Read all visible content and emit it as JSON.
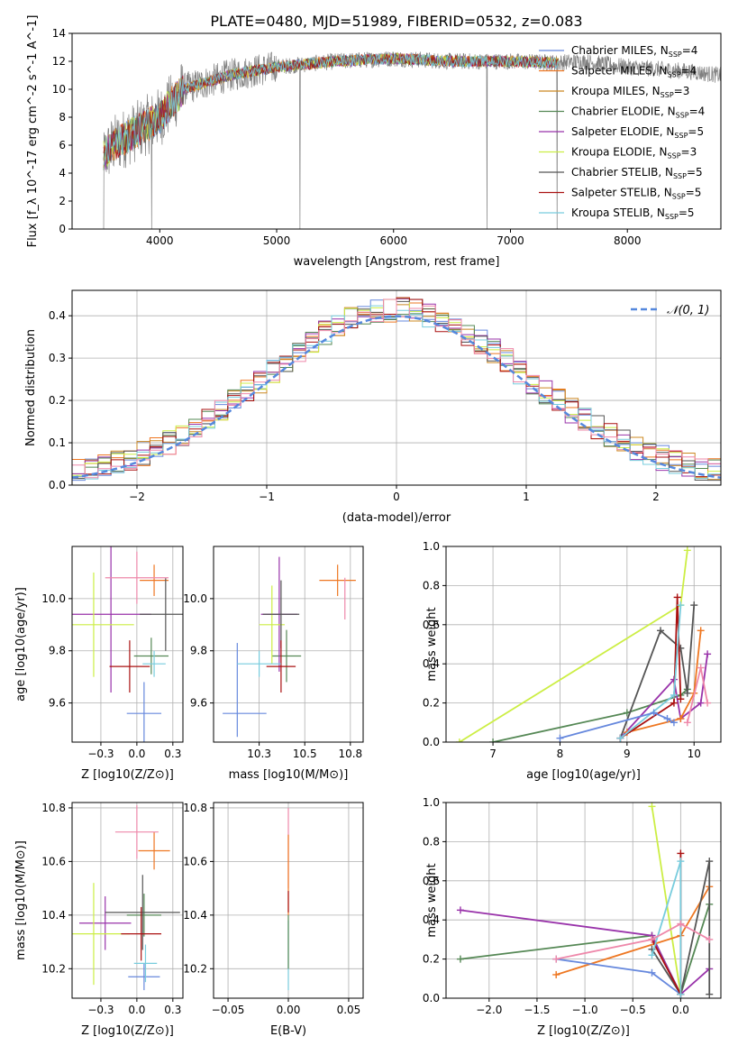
{
  "figure": {
    "title": "PLATE=0480, MJD=51989, FIBERID=0532, z=0.083"
  },
  "series": [
    {
      "key": "cm",
      "name": "Chabrier MILES, N",
      "sub": "SSP",
      "count": "=4",
      "color": "#6688dd"
    },
    {
      "key": "sm",
      "name": "Salpeter MILES, N",
      "sub": "SSP",
      "count": "=4",
      "color": "#ee7722"
    },
    {
      "key": "km",
      "name": "Kroupa MILES, N",
      "sub": "SSP",
      "count": "=3",
      "color": "#cc8822"
    },
    {
      "key": "ce",
      "name": "Chabrier ELODIE, N",
      "sub": "SSP",
      "count": "=4",
      "color": "#558855"
    },
    {
      "key": "se",
      "name": "Salpeter ELODIE, N",
      "sub": "SSP",
      "count": "=5",
      "color": "#9933aa"
    },
    {
      "key": "ke",
      "name": "Kroupa ELODIE, N",
      "sub": "SSP",
      "count": "=3",
      "color": "#ccee44"
    },
    {
      "key": "cs",
      "name": "Chabrier STELIB, N",
      "sub": "SSP",
      "count": "=5",
      "color": "#555555"
    },
    {
      "key": "ss",
      "name": "Salpeter STELIB, N",
      "sub": "SSP",
      "count": "=5",
      "color": "#aa1111"
    },
    {
      "key": "ks",
      "name": "Kroupa STELIB, N",
      "sub": "SSP",
      "count": "=5",
      "color": "#77ccdd"
    }
  ],
  "chart_data": [
    {
      "id": "spectrum",
      "type": "line",
      "xlabel": "wavelength [Angstrom, rest frame]",
      "ylabel": "Flux [f_λ 10^-17 erg cm^-2 s^-1 A^-1]",
      "xlim": [
        3250,
        8800
      ],
      "ylim": [
        0,
        14
      ],
      "xticks": [
        4000,
        5000,
        6000,
        7000,
        8000
      ],
      "yticks": [
        0,
        2,
        4,
        6,
        8,
        10,
        12,
        14
      ],
      "data_color": "#808080",
      "continuum": {
        "x": [
          3500,
          3600,
          3800,
          4000,
          4200,
          4600,
          5000,
          5500,
          6000,
          6500,
          7000,
          7400,
          7600,
          8000,
          8500,
          8800
        ],
        "y": [
          5.0,
          6.0,
          7.0,
          8.0,
          10.0,
          11.0,
          11.6,
          12.0,
          12.2,
          12.0,
          12.0,
          11.9,
          12.0,
          11.6,
          11.3,
          11.0
        ]
      },
      "dips": [
        [
          3930,
          0.0
        ],
        [
          5200,
          0.0
        ],
        [
          6800,
          0.0
        ],
        [
          7400,
          0.0
        ]
      ]
    },
    {
      "id": "residuals",
      "type": "histogram",
      "xlabel": "(data-model)/error",
      "ylabel": "Normed distribution",
      "xlim": [
        -2.5,
        2.5
      ],
      "ylim": [
        0,
        0.46
      ],
      "xticks": [
        -2,
        -1,
        0,
        1,
        2
      ],
      "yticks": [
        0.0,
        0.1,
        0.2,
        0.3,
        0.4
      ],
      "reference": {
        "label": "𝒩(0, 1)",
        "mean": 0,
        "sigma": 1,
        "color": "#5588dd"
      }
    },
    {
      "id": "age_Z",
      "type": "errorbar",
      "xlabel": "Z [log10(Z/Z⊙)]",
      "ylabel": "age [log10(age/yr)]",
      "xlim": [
        -0.45,
        0.32
      ],
      "ylim": [
        9.45,
        10.2
      ],
      "xticks": [
        -0.25,
        0.0,
        0.25
      ],
      "yticks": [
        9.6,
        9.8,
        10.0
      ],
      "points": [
        {
          "s": "cm",
          "x": 0.05,
          "xerr": 0.12,
          "y": 9.56,
          "yerr": 0.12
        },
        {
          "s": "sm",
          "x": 0.12,
          "xerr": 0.1,
          "y": 10.07,
          "yerr": 0.06
        },
        {
          "s": "km",
          "x": 0.0,
          "xerr": 0.0,
          "y": 9.95,
          "yerr": 0.0
        },
        {
          "s": "ce",
          "x": 0.1,
          "xerr": 0.12,
          "y": 9.78,
          "yerr": 0.07
        },
        {
          "s": "se",
          "x": -0.18,
          "xerr": 0.28,
          "y": 9.94,
          "yerr": 0.3
        },
        {
          "s": "ke",
          "x": -0.3,
          "xerr": 0.28,
          "y": 9.9,
          "yerr": 0.2
        },
        {
          "s": "cs",
          "x": 0.2,
          "xerr": 0.18,
          "y": 9.94,
          "yerr": 0.14
        },
        {
          "s": "ss",
          "x": -0.05,
          "xerr": 0.14,
          "y": 9.74,
          "yerr": 0.1
        },
        {
          "s": "ks",
          "x": 0.12,
          "xerr": 0.08,
          "y": 9.75,
          "yerr": 0.05
        },
        {
          "s": "pink",
          "x": 0.0,
          "xerr": 0.22,
          "y": 10.08,
          "yerr": 0.1
        }
      ]
    },
    {
      "id": "age_mass",
      "type": "errorbar",
      "xlabel": "mass [log10(M/M⊙)]",
      "ylabel": "",
      "xlim": [
        10.0,
        10.82
      ],
      "ylim": [
        9.45,
        10.2
      ],
      "xticks": [
        10.25,
        10.5,
        10.75
      ],
      "yticks": [
        9.6,
        9.8,
        10.0
      ],
      "points": [
        {
          "s": "cm",
          "x": 10.17,
          "xerr": 0.12,
          "y": 9.56,
          "yerr": 0.0
        },
        {
          "s": "cm",
          "x": 10.13,
          "xerr": 0.0,
          "y": 9.65,
          "yerr": 0.18
        },
        {
          "s": "sm",
          "x": 10.68,
          "xerr": 0.1,
          "y": 10.07,
          "yerr": 0.06
        },
        {
          "s": "ce",
          "x": 10.4,
          "xerr": 0.08,
          "y": 9.78,
          "yerr": 0.1
        },
        {
          "s": "se",
          "x": 10.36,
          "xerr": 0.1,
          "y": 9.94,
          "yerr": 0.22
        },
        {
          "s": "ke",
          "x": 10.32,
          "xerr": 0.07,
          "y": 9.9,
          "yerr": 0.15
        },
        {
          "s": "cs",
          "x": 10.37,
          "xerr": 0.1,
          "y": 9.94,
          "yerr": 0.13
        },
        {
          "s": "ss",
          "x": 10.37,
          "xerr": 0.08,
          "y": 9.74,
          "yerr": 0.1
        },
        {
          "s": "ks",
          "x": 10.25,
          "xerr": 0.12,
          "y": 9.75,
          "yerr": 0.05
        },
        {
          "s": "pink",
          "x": 10.72,
          "xerr": 0.0,
          "y": 10.0,
          "yerr": 0.08
        }
      ]
    },
    {
      "id": "mass_Z",
      "type": "errorbar",
      "xlabel": "Z [log10(Z/Z⊙)]",
      "ylabel": "mass [log10(M/M⊙)]",
      "xlim": [
        -0.45,
        0.32
      ],
      "ylim": [
        10.09,
        10.82
      ],
      "xticks": [
        -0.25,
        0.0,
        0.25
      ],
      "yticks": [
        10.2,
        10.4,
        10.6,
        10.8
      ],
      "points": [
        {
          "s": "cm",
          "x": 0.05,
          "xerr": 0.11,
          "y": 10.17,
          "yerr": 0.05
        },
        {
          "s": "sm",
          "x": 0.12,
          "xerr": 0.11,
          "y": 10.64,
          "yerr": 0.07
        },
        {
          "s": "ce",
          "x": 0.05,
          "xerr": 0.12,
          "y": 10.4,
          "yerr": 0.08
        },
        {
          "s": "se",
          "x": -0.22,
          "xerr": 0.18,
          "y": 10.37,
          "yerr": 0.1
        },
        {
          "s": "ke",
          "x": -0.3,
          "xerr": 0.25,
          "y": 10.33,
          "yerr": 0.19
        },
        {
          "s": "cs",
          "x": 0.04,
          "xerr": 0.26,
          "y": 10.41,
          "yerr": 0.14
        },
        {
          "s": "ss",
          "x": 0.03,
          "xerr": 0.14,
          "y": 10.33,
          "yerr": 0.1
        },
        {
          "s": "ks",
          "x": 0.06,
          "xerr": 0.08,
          "y": 10.22,
          "yerr": 0.07
        },
        {
          "s": "pink",
          "x": 0.0,
          "xerr": 0.15,
          "y": 10.71,
          "yerr": 0.1
        }
      ]
    },
    {
      "id": "mass_EBV",
      "type": "errorbar",
      "xlabel": "E(B-V)",
      "ylabel": "",
      "xlim": [
        -0.062,
        0.062
      ],
      "ylim": [
        10.09,
        10.82
      ],
      "xticks": [
        -0.05,
        0.0,
        0.05
      ],
      "yticks": [
        10.2,
        10.4,
        10.6,
        10.8
      ],
      "points": [
        {
          "s": "pink",
          "x": 0.0,
          "xerr": 0.0,
          "y": 10.65,
          "yerr": 0.15
        },
        {
          "s": "sm",
          "x": 0.0,
          "xerr": 0.0,
          "y": 10.55,
          "yerr": 0.15
        },
        {
          "s": "ss",
          "x": 0.0,
          "xerr": 0.0,
          "y": 10.45,
          "yerr": 0.04
        },
        {
          "s": "ks",
          "x": 0.0,
          "xerr": 0.0,
          "y": 10.25,
          "yerr": 0.13
        },
        {
          "s": "ce",
          "x": 0.0,
          "xerr": 0.0,
          "y": 10.3,
          "yerr": 0.1
        }
      ]
    },
    {
      "id": "weight_age",
      "type": "line",
      "xlabel": "age [log10(age/yr)]",
      "ylabel": "mass weight",
      "xlim": [
        6.3,
        10.4
      ],
      "ylim": [
        0,
        1
      ],
      "xticks": [
        7,
        8,
        9,
        10
      ],
      "yticks": [
        0.0,
        0.2,
        0.4,
        0.6,
        0.8,
        1.0
      ],
      "series": [
        {
          "s": "ke",
          "x": [
            6.5,
            9.8,
            9.9
          ],
          "y": [
            0.0,
            0.7,
            0.98
          ]
        },
        {
          "s": "ce",
          "x": [
            7.0,
            9.0,
            9.8,
            9.9
          ],
          "y": [
            0.0,
            0.15,
            0.24,
            0.27
          ]
        },
        {
          "s": "cs",
          "x": [
            8.9,
            9.5,
            9.8,
            9.9,
            10.0
          ],
          "y": [
            0.02,
            0.57,
            0.48,
            0.25,
            0.7
          ]
        },
        {
          "s": "se",
          "x": [
            8.9,
            9.7,
            9.8,
            10.1,
            10.2
          ],
          "y": [
            0.02,
            0.32,
            0.12,
            0.2,
            0.45
          ]
        },
        {
          "s": "sm",
          "x": [
            9.0,
            9.8,
            10.0,
            10.1
          ],
          "y": [
            0.05,
            0.12,
            0.25,
            0.57
          ]
        },
        {
          "s": "ss",
          "x": [
            8.9,
            9.7,
            9.75,
            9.8
          ],
          "y": [
            0.02,
            0.2,
            0.74,
            0.22
          ]
        },
        {
          "s": "ks",
          "x": [
            8.9,
            9.7,
            9.8
          ],
          "y": [
            0.02,
            0.24,
            0.7
          ]
        },
        {
          "s": "cm",
          "x": [
            8.0,
            9.4,
            9.6,
            9.7
          ],
          "y": [
            0.02,
            0.15,
            0.12,
            0.1
          ]
        },
        {
          "s": "pink",
          "x": [
            9.9,
            10.1,
            10.2
          ],
          "y": [
            0.1,
            0.38,
            0.2
          ]
        }
      ]
    },
    {
      "id": "weight_Z",
      "type": "line",
      "xlabel": "Z [log10(Z/Z⊙)]",
      "ylabel": "mass weight",
      "xlim": [
        -2.45,
        0.42
      ],
      "ylim": [
        0,
        1
      ],
      "xticks": [
        -2.0,
        -1.5,
        -1.0,
        -0.5,
        0.0
      ],
      "yticks": [
        0.0,
        0.2,
        0.4,
        0.6,
        0.8,
        1.0
      ],
      "series": [
        {
          "s": "ke",
          "x": [
            -0.3,
            0.0
          ],
          "y": [
            0.98,
            0.02
          ]
        },
        {
          "s": "ce",
          "x": [
            -2.3,
            -0.3,
            0.0,
            0.3
          ],
          "y": [
            0.2,
            0.32,
            0.02,
            0.48
          ]
        },
        {
          "s": "se",
          "x": [
            -2.3,
            -0.3,
            0.0,
            0.3
          ],
          "y": [
            0.45,
            0.32,
            0.02,
            0.15
          ]
        },
        {
          "s": "sm",
          "x": [
            -1.3,
            0.0,
            0.3
          ],
          "y": [
            0.12,
            0.32,
            0.57
          ]
        },
        {
          "s": "cm",
          "x": [
            -1.3,
            -0.3,
            0.0
          ],
          "y": [
            0.2,
            0.13,
            0.02
          ]
        },
        {
          "s": "cs",
          "x": [
            -0.3,
            0.0,
            0.3,
            0.3
          ],
          "y": [
            0.25,
            0.02,
            0.7,
            0.02
          ]
        },
        {
          "s": "ss",
          "x": [
            -0.3,
            0.0,
            0.0
          ],
          "y": [
            0.3,
            0.02,
            0.74
          ]
        },
        {
          "s": "ks",
          "x": [
            -0.3,
            0.0,
            0.0
          ],
          "y": [
            0.22,
            0.7,
            0.02
          ]
        },
        {
          "s": "pink",
          "x": [
            -1.3,
            -0.3,
            0.0,
            0.3
          ],
          "y": [
            0.2,
            0.3,
            0.38,
            0.3
          ]
        }
      ]
    }
  ],
  "extra_colors": {
    "pink": "#ee88aa"
  }
}
